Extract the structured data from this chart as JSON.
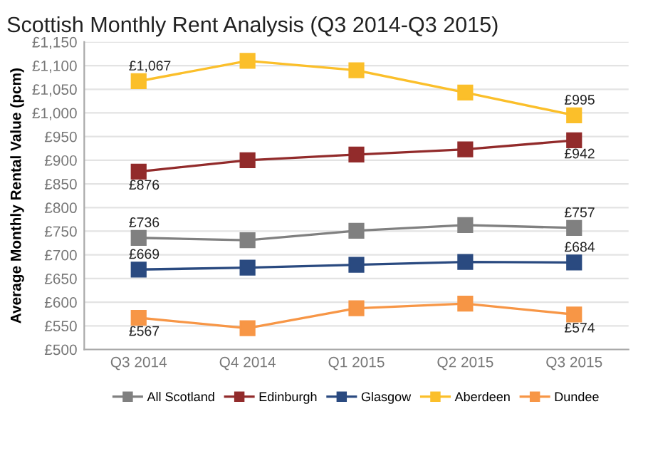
{
  "chart_data": {
    "type": "line",
    "title": "Scottish Monthly Rent Analysis (Q3 2014-Q3 2015)",
    "ylabel": "Average Monthly Rental Value (pcm)",
    "categories": [
      "Q3 2014",
      "Q4 2014",
      "Q1 2015",
      "Q2 2015",
      "Q3 2015"
    ],
    "series": [
      {
        "name": "All Scotland",
        "color": "#808080",
        "values": [
          736,
          731,
          751,
          763,
          757
        ],
        "value_labels": [
          "£736",
          null,
          null,
          null,
          "£757"
        ]
      },
      {
        "name": "Edinburgh",
        "color": "#922b2b",
        "values": [
          876,
          900,
          912,
          923,
          942
        ],
        "value_labels": [
          "£876",
          null,
          null,
          null,
          "£942"
        ]
      },
      {
        "name": "Glasgow",
        "color": "#2a4a80",
        "values": [
          669,
          673,
          679,
          685,
          684
        ],
        "value_labels": [
          "£669",
          null,
          null,
          null,
          "£684"
        ]
      },
      {
        "name": "Aberdeen",
        "color": "#fbbf2a",
        "values": [
          1067,
          1110,
          1090,
          1043,
          995
        ],
        "value_labels": [
          "£1,067",
          null,
          null,
          null,
          "£995"
        ]
      },
      {
        "name": "Dundee",
        "color": "#f79646",
        "values": [
          567,
          545,
          587,
          597,
          574
        ],
        "value_labels": [
          "£567",
          null,
          null,
          null,
          "£574"
        ]
      }
    ],
    "ylim": [
      500,
      1150
    ],
    "yticks": [
      {
        "value": 500,
        "label": "£500"
      },
      {
        "value": 550,
        "label": "£550"
      },
      {
        "value": 600,
        "label": "£600"
      },
      {
        "value": 650,
        "label": "£650"
      },
      {
        "value": 700,
        "label": "£700"
      },
      {
        "value": 750,
        "label": "£750"
      },
      {
        "value": 800,
        "label": "£800"
      },
      {
        "value": 850,
        "label": "£850"
      },
      {
        "value": 900,
        "label": "£900"
      },
      {
        "value": 950,
        "label": "£950"
      },
      {
        "value": 1000,
        "label": "£1,000"
      },
      {
        "value": 1050,
        "label": "£1,050"
      },
      {
        "value": 1100,
        "label": "£1,100"
      },
      {
        "value": 1150,
        "label": "£1,150"
      }
    ],
    "grid": "y",
    "legend": "bottom",
    "marker": "square",
    "line_style": "solid"
  }
}
